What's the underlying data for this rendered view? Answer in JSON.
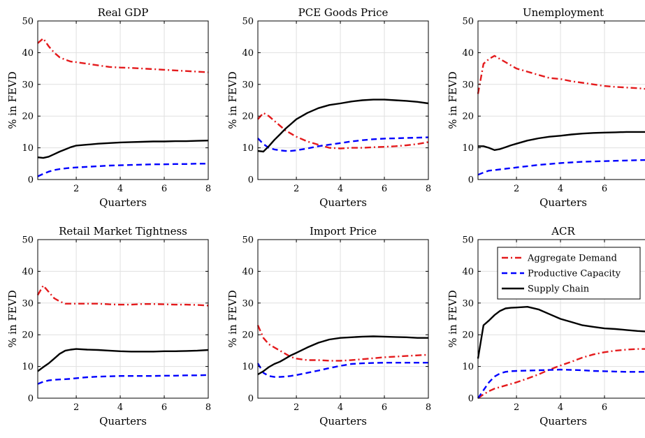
{
  "figure": {
    "colors": {
      "aggregate_demand": "#e41a1c",
      "productive_capacity": "#0000ff",
      "supply_chain": "#000000",
      "grid": "#e0e0e0"
    }
  },
  "chart_data": [
    {
      "type": "line",
      "title": "Real GDP",
      "xlabel": "Quarters",
      "ylabel": "% in FEVD",
      "xlim": [
        0.25,
        8
      ],
      "ylim": [
        0,
        50
      ],
      "xticks": [
        "2",
        "4",
        "6",
        "8"
      ],
      "yticks": [
        "0",
        "10",
        "20",
        "30",
        "40",
        "50"
      ],
      "grid": true,
      "x": [
        0.25,
        0.5,
        0.75,
        1,
        1.25,
        1.5,
        1.75,
        2,
        2.5,
        3,
        3.5,
        4,
        4.5,
        5,
        5.5,
        6,
        6.5,
        7,
        7.5,
        8
      ],
      "series": [
        {
          "key": "aggregate_demand",
          "style": "dashdot",
          "values": [
            43,
            44.5,
            42,
            40,
            38.5,
            37.8,
            37.2,
            37,
            36.5,
            36,
            35.5,
            35.3,
            35.2,
            35,
            34.8,
            34.6,
            34.4,
            34.2,
            34,
            33.8
          ]
        },
        {
          "key": "productive_capacity",
          "style": "dashed",
          "values": [
            1,
            1.8,
            2.5,
            3,
            3.3,
            3.5,
            3.7,
            3.8,
            4,
            4.2,
            4.4,
            4.5,
            4.6,
            4.7,
            4.8,
            4.8,
            4.9,
            4.9,
            5,
            5
          ]
        },
        {
          "key": "supply_chain",
          "style": "solid",
          "values": [
            7,
            6.8,
            7.2,
            8,
            8.8,
            9.5,
            10.2,
            10.7,
            11,
            11.3,
            11.5,
            11.7,
            11.8,
            11.9,
            12,
            12,
            12.1,
            12.1,
            12.2,
            12.3
          ]
        }
      ]
    },
    {
      "type": "line",
      "title": "PCE Goods Price",
      "xlabel": "Quarters",
      "ylabel": "% in FEVD",
      "xlim": [
        0.25,
        8
      ],
      "ylim": [
        0,
        50
      ],
      "xticks": [
        "2",
        "4",
        "6",
        "8"
      ],
      "yticks": [
        "0",
        "10",
        "20",
        "30",
        "40",
        "50"
      ],
      "grid": true,
      "x": [
        0.25,
        0.5,
        0.75,
        1,
        1.25,
        1.5,
        1.75,
        2,
        2.5,
        3,
        3.5,
        4,
        4.5,
        5,
        5.5,
        6,
        6.5,
        7,
        7.5,
        8
      ],
      "series": [
        {
          "key": "aggregate_demand",
          "style": "dashdot",
          "values": [
            19,
            21,
            20,
            18.5,
            17,
            15.5,
            14.5,
            13.5,
            12,
            11,
            10,
            9.8,
            10,
            10,
            10.2,
            10.3,
            10.5,
            10.8,
            11.2,
            11.8
          ]
        },
        {
          "key": "productive_capacity",
          "style": "dashed",
          "values": [
            13,
            11.2,
            10,
            9.5,
            9.2,
            9,
            9,
            9.2,
            9.8,
            10.5,
            11,
            11.5,
            12,
            12.4,
            12.7,
            12.9,
            13,
            13.1,
            13.2,
            13.3
          ]
        },
        {
          "key": "supply_chain",
          "style": "solid",
          "values": [
            9,
            8.8,
            10.5,
            12.5,
            14.2,
            16,
            17.5,
            19,
            21,
            22.5,
            23.5,
            24,
            24.6,
            25,
            25.2,
            25.2,
            25,
            24.8,
            24.5,
            24
          ]
        }
      ]
    },
    {
      "type": "line",
      "title": "Unemployment",
      "xlabel": "Quarters",
      "ylabel": "% in FEVD",
      "xlim": [
        0.25,
        8
      ],
      "ylim": [
        0,
        50
      ],
      "xticks": [
        "2",
        "4",
        "6",
        "8"
      ],
      "yticks": [
        "0",
        "10",
        "20",
        "30",
        "40",
        "50"
      ],
      "grid": true,
      "x": [
        0.25,
        0.5,
        0.75,
        1,
        1.25,
        1.5,
        1.75,
        2,
        2.5,
        3,
        3.5,
        4,
        4.5,
        5,
        5.5,
        6,
        6.5,
        7,
        7.5,
        8
      ],
      "series": [
        {
          "key": "aggregate_demand",
          "style": "dashdot",
          "values": [
            27,
            36.5,
            38,
            39,
            38,
            37,
            36,
            35,
            34,
            33,
            32,
            31.7,
            31,
            30.5,
            30,
            29.5,
            29.2,
            29,
            28.8,
            28.5
          ]
        },
        {
          "key": "productive_capacity",
          "style": "dashed",
          "values": [
            1.5,
            2.2,
            2.8,
            3,
            3.2,
            3.4,
            3.6,
            3.8,
            4.2,
            4.6,
            4.9,
            5.2,
            5.4,
            5.6,
            5.7,
            5.8,
            5.9,
            6,
            6.1,
            6.2
          ]
        },
        {
          "key": "supply_chain",
          "style": "solid",
          "values": [
            10.5,
            10.5,
            10,
            9.3,
            9.6,
            10.2,
            10.8,
            11.3,
            12.3,
            13,
            13.5,
            13.8,
            14.2,
            14.5,
            14.7,
            14.8,
            14.9,
            15,
            15,
            15
          ]
        }
      ]
    },
    {
      "type": "line",
      "title": "Retail Market Tightness",
      "xlabel": "Quarters",
      "ylabel": "% in FEVD",
      "xlim": [
        0.25,
        8
      ],
      "ylim": [
        0,
        50
      ],
      "xticks": [
        "2",
        "4",
        "6",
        "8"
      ],
      "yticks": [
        "0",
        "10",
        "20",
        "30",
        "40",
        "50"
      ],
      "grid": true,
      "x": [
        0.25,
        0.5,
        0.75,
        1,
        1.25,
        1.5,
        1.75,
        2,
        2.5,
        3,
        3.5,
        4,
        4.5,
        5,
        5.5,
        6,
        6.5,
        7,
        7.5,
        8
      ],
      "series": [
        {
          "key": "aggregate_demand",
          "style": "dashdot",
          "values": [
            32.5,
            35.5,
            33.5,
            31.5,
            30.5,
            29.8,
            29.8,
            29.8,
            29.8,
            29.8,
            29.6,
            29.5,
            29.5,
            29.7,
            29.7,
            29.6,
            29.5,
            29.5,
            29.4,
            29.2
          ]
        },
        {
          "key": "productive_capacity",
          "style": "dashed",
          "values": [
            4.5,
            5.2,
            5.6,
            5.8,
            5.9,
            6,
            6.1,
            6.3,
            6.6,
            6.8,
            6.9,
            7,
            7,
            7,
            7,
            7.1,
            7.1,
            7.2,
            7.2,
            7.3
          ]
        },
        {
          "key": "supply_chain",
          "style": "solid",
          "values": [
            8.5,
            9.8,
            11,
            12.5,
            14,
            15,
            15.3,
            15.5,
            15.3,
            15.2,
            15,
            14.8,
            14.7,
            14.7,
            14.7,
            14.8,
            14.8,
            14.9,
            15,
            15.2
          ]
        }
      ]
    },
    {
      "type": "line",
      "title": "Import Price",
      "xlabel": "Quarters",
      "ylabel": "% in FEVD",
      "xlim": [
        0.25,
        8
      ],
      "ylim": [
        0,
        50
      ],
      "xticks": [
        "2",
        "4",
        "6",
        "8"
      ],
      "yticks": [
        "0",
        "10",
        "20",
        "30",
        "40",
        "50"
      ],
      "grid": true,
      "x": [
        0.25,
        0.5,
        0.75,
        1,
        1.25,
        1.5,
        1.75,
        2,
        2.5,
        3,
        3.5,
        4,
        4.5,
        5,
        5.5,
        6,
        6.5,
        7,
        7.5,
        8
      ],
      "series": [
        {
          "key": "aggregate_demand",
          "style": "dashdot",
          "values": [
            23,
            19,
            17,
            16,
            15,
            14,
            13,
            12.5,
            12,
            12,
            11.8,
            11.8,
            12,
            12.3,
            12.6,
            12.9,
            13.1,
            13.3,
            13.5,
            13.7
          ]
        },
        {
          "key": "productive_capacity",
          "style": "dashed",
          "values": [
            11,
            8,
            7,
            6.7,
            6.7,
            6.8,
            7,
            7.3,
            8,
            8.7,
            9.5,
            10.2,
            10.8,
            11,
            11.1,
            11.2,
            11.2,
            11.2,
            11.2,
            11.2
          ]
        },
        {
          "key": "supply_chain",
          "style": "solid",
          "values": [
            7.5,
            8.5,
            9.8,
            10.8,
            11.5,
            12.5,
            13.5,
            14.3,
            16,
            17.5,
            18.5,
            19,
            19.2,
            19.4,
            19.5,
            19.4,
            19.3,
            19.2,
            19,
            19
          ]
        }
      ]
    },
    {
      "type": "line",
      "title": "ACR",
      "xlabel": "Quarters",
      "ylabel": "% in FEVD",
      "xlim": [
        0.25,
        8
      ],
      "ylim": [
        0,
        50
      ],
      "xticks": [
        "2",
        "4",
        "6",
        "8"
      ],
      "yticks": [
        "0",
        "10",
        "20",
        "30",
        "40",
        "50"
      ],
      "grid": true,
      "legend": {
        "placement": "top-right",
        "entries": [
          "Aggregate Demand",
          "Productive Capacity",
          "Supply Chain"
        ]
      },
      "x": [
        0.25,
        0.5,
        0.75,
        1,
        1.25,
        1.5,
        1.75,
        2,
        2.5,
        3,
        3.5,
        4,
        4.5,
        5,
        5.5,
        6,
        6.5,
        7,
        7.5,
        8
      ],
      "series": [
        {
          "key": "aggregate_demand",
          "style": "dashdot",
          "values": [
            0,
            1.2,
            2.2,
            3,
            3.5,
            4,
            4.5,
            5,
            6.2,
            7.5,
            9,
            10.3,
            11.5,
            12.8,
            13.8,
            14.5,
            15,
            15.3,
            15.5,
            15.5
          ]
        },
        {
          "key": "productive_capacity",
          "style": "dashed",
          "values": [
            0,
            2.5,
            5,
            6.8,
            7.8,
            8.3,
            8.5,
            8.6,
            8.7,
            8.8,
            8.9,
            9,
            8.9,
            8.8,
            8.6,
            8.5,
            8.4,
            8.3,
            8.3,
            8.3
          ]
        },
        {
          "key": "supply_chain",
          "style": "solid",
          "values": [
            12.5,
            23,
            24.5,
            26.2,
            27.5,
            28.3,
            28.5,
            28.6,
            28.8,
            28,
            26.5,
            25,
            24,
            23,
            22.5,
            22,
            21.8,
            21.5,
            21.2,
            21
          ]
        }
      ]
    }
  ]
}
